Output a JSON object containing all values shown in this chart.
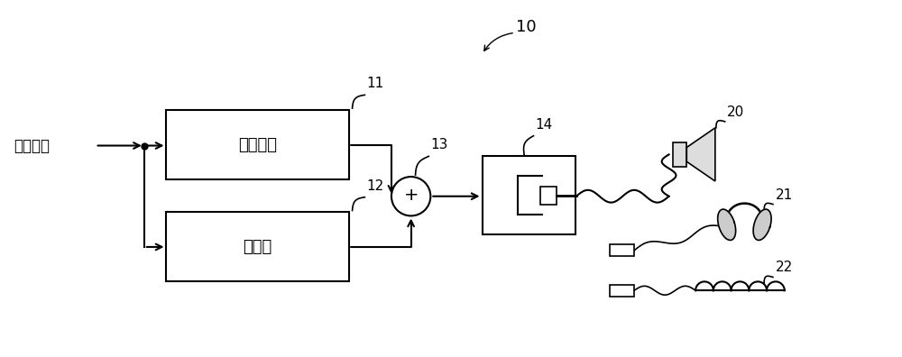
{
  "bg_color": "#ffffff",
  "box_color": "#ffffff",
  "box_edge": "#000000",
  "line_color": "#000000",
  "label_10": "10",
  "label_11": "11",
  "label_12": "12",
  "label_13": "13",
  "label_14": "14",
  "label_20": "20",
  "label_21": "21",
  "label_22": "22",
  "text_oversample": "过采样部",
  "text_modulate": "调制部",
  "text_signal": "音响信号",
  "font_size_box": 13,
  "font_size_label": 11,
  "font_size_signal": 12
}
